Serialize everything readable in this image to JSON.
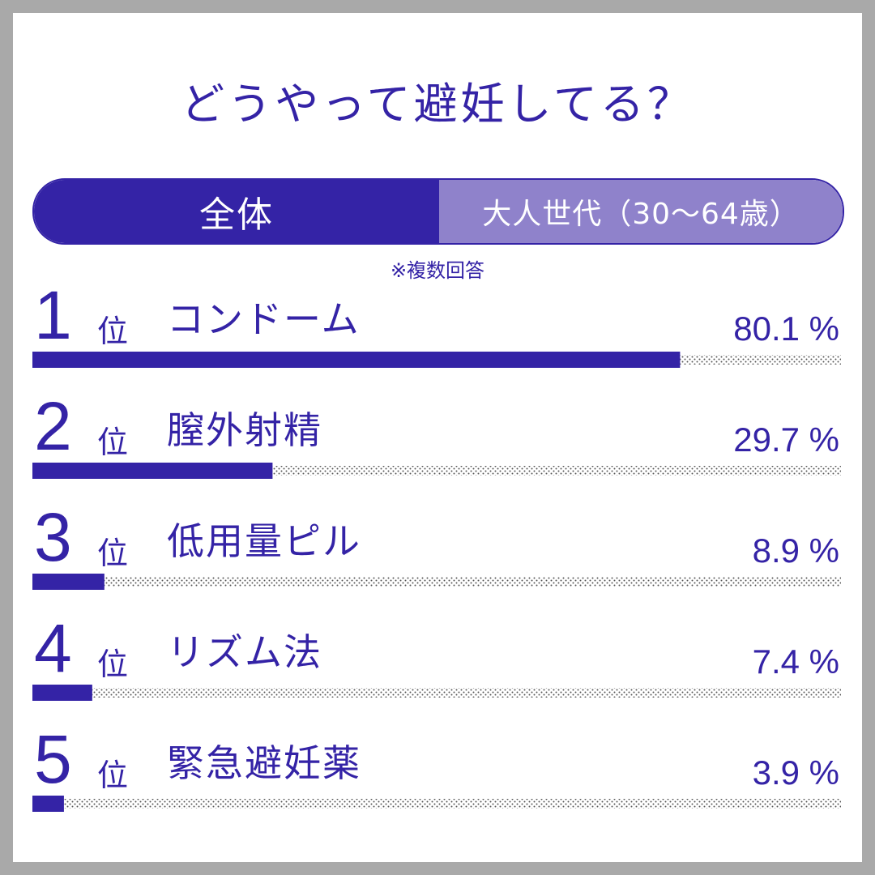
{
  "header": {
    "title": "どうやって避妊してる？"
  },
  "tabs": [
    {
      "label": "全体",
      "active": true
    },
    {
      "label": "大人世代（30〜64歳）",
      "active": false
    }
  ],
  "note": "※複数回答",
  "colors": {
    "accent": "#3423a6",
    "inactive_tab": "#8f82cb",
    "dotted_track": "#555555",
    "background_frame": "#a9a9a9"
  },
  "chart_data": {
    "type": "bar",
    "orientation": "horizontal",
    "unit_label": "%",
    "rank_suffix": "位",
    "xlim": [
      0,
      100
    ],
    "items": [
      {
        "rank": "1",
        "label": "コンドーム",
        "value": 80.1,
        "value_text": "80.1 %"
      },
      {
        "rank": "2",
        "label": "膣外射精",
        "value": 29.7,
        "value_text": "29.7 %"
      },
      {
        "rank": "3",
        "label": "低用量ピル",
        "value": 8.9,
        "value_text": "8.9 %"
      },
      {
        "rank": "4",
        "label": "リズム法",
        "value": 7.4,
        "value_text": "7.4 %"
      },
      {
        "rank": "5",
        "label": "緊急避妊薬",
        "value": 3.9,
        "value_text": "3.9 %"
      }
    ]
  }
}
